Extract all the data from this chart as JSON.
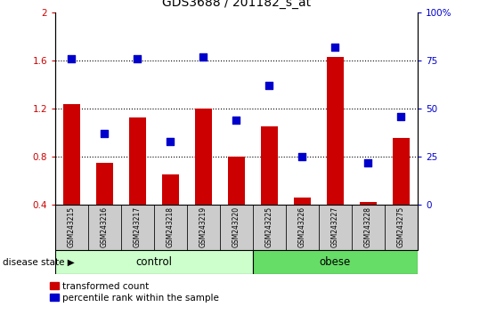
{
  "title": "GDS3688 / 201182_s_at",
  "samples": [
    "GSM243215",
    "GSM243216",
    "GSM243217",
    "GSM243218",
    "GSM243219",
    "GSM243220",
    "GSM243225",
    "GSM243226",
    "GSM243227",
    "GSM243228",
    "GSM243275"
  ],
  "red_values": [
    1.24,
    0.75,
    1.13,
    0.65,
    1.2,
    0.8,
    1.05,
    0.46,
    1.63,
    0.42,
    0.96
  ],
  "blue_percentiles": [
    76,
    37,
    76,
    33,
    77,
    44,
    62,
    25,
    82,
    22,
    46
  ],
  "ylim_left": [
    0.4,
    2.0
  ],
  "ylim_right": [
    0.0,
    100.0
  ],
  "yticks_left": [
    0.4,
    0.8,
    1.2,
    1.6,
    2.0
  ],
  "yticks_right": [
    0,
    25,
    50,
    75,
    100
  ],
  "ytick_labels_left": [
    "0.4",
    "0.8",
    "1.2",
    "1.6",
    "2"
  ],
  "ytick_labels_right": [
    "0",
    "25",
    "50",
    "75",
    "100%"
  ],
  "n_control": 6,
  "group_label": "disease state",
  "control_label": "control",
  "obese_label": "obese",
  "legend_red": "transformed count",
  "legend_blue": "percentile rank within the sample",
  "bar_color": "#cc0000",
  "dot_color": "#0000cc",
  "control_bg": "#ccffcc",
  "obese_bg": "#66dd66",
  "xticklabel_bg": "#cccccc",
  "bar_width": 0.5,
  "dot_size": 28,
  "base_value": 0.4,
  "grid_yticks": [
    0.8,
    1.2,
    1.6
  ]
}
